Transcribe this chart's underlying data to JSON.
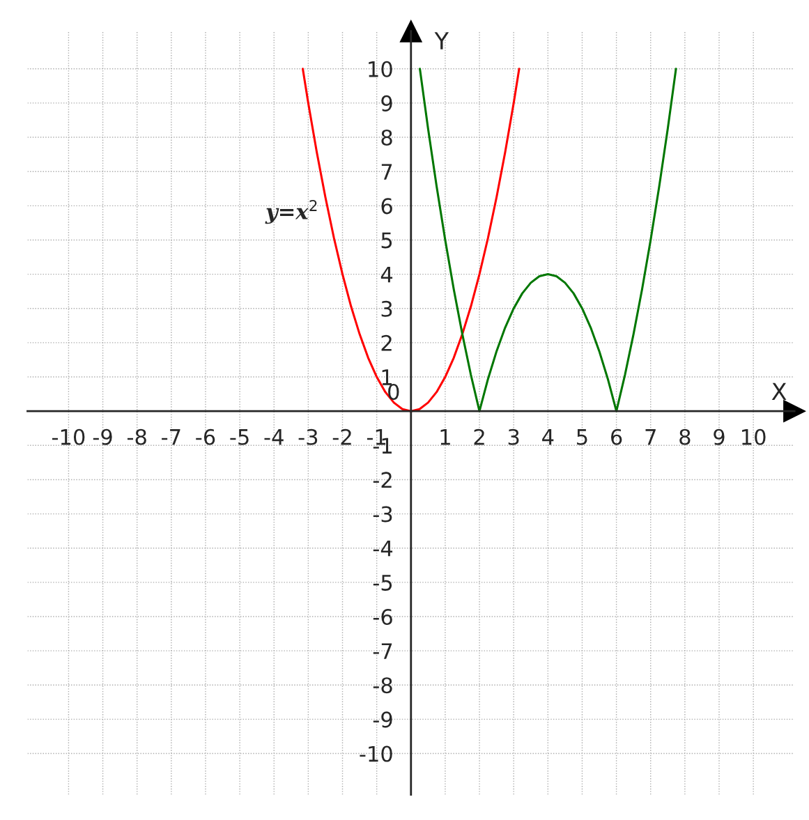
{
  "chart_data": {
    "type": "line",
    "xlabel": "X",
    "ylabel": "Y",
    "xlim": [
      -11.2,
      11.2
    ],
    "ylim": [
      -11.2,
      11.1
    ],
    "xticks": [
      -10,
      -9,
      -8,
      -7,
      -6,
      -5,
      -4,
      -3,
      -2,
      -1,
      {
        "value": 0,
        "label": null
      },
      1,
      2,
      3,
      4,
      5,
      6,
      7,
      8,
      9,
      10
    ],
    "yticks": [
      -10,
      -9,
      -8,
      -7,
      -6,
      -5,
      -4,
      -3,
      -2,
      -1,
      {
        "value": 0,
        "label": null
      },
      1,
      2,
      3,
      4,
      5,
      6,
      7,
      8,
      9,
      10
    ],
    "grid": true,
    "marker": "none",
    "line_style": "solid",
    "series": [
      {
        "color": "#ff0000",
        "x": [
          -3.16,
          -3,
          -2.75,
          -2.5,
          -2.25,
          -2,
          -1.75,
          -1.5,
          -1.25,
          -1,
          -0.75,
          -0.5,
          -0.25,
          0,
          0.25,
          0.5,
          0.75,
          1,
          1.25,
          1.5,
          1.75,
          2,
          2.25,
          2.5,
          2.75,
          3,
          3.16
        ],
        "values": [
          10,
          9,
          7.56,
          6.25,
          5.06,
          4,
          3.06,
          2.25,
          1.56,
          1,
          0.56,
          0.25,
          0.06,
          0,
          0.06,
          0.25,
          0.56,
          1,
          1.56,
          2.25,
          3.06,
          4,
          5.06,
          6.25,
          7.56,
          9,
          10
        ]
      },
      {
        "color": "#007700",
        "x": [
          0.26,
          0.5,
          0.75,
          1,
          1.25,
          1.5,
          1.75,
          2,
          2.25,
          2.5,
          2.75,
          3,
          3.25,
          3.5,
          3.75,
          4,
          4.25,
          4.5,
          4.75,
          5,
          5.25,
          5.5,
          5.75,
          6,
          6.25,
          6.5,
          6.75,
          7,
          7.25,
          7.5,
          7.74
        ],
        "values": [
          10,
          8.25,
          6.56,
          5,
          3.56,
          2.25,
          1.06,
          0,
          0.94,
          1.75,
          2.44,
          3,
          3.44,
          3.75,
          3.94,
          4,
          3.94,
          3.75,
          3.44,
          3,
          2.44,
          1.75,
          0.94,
          0,
          1.06,
          2.25,
          3.56,
          5,
          6.56,
          8.25,
          10
        ]
      }
    ],
    "annotations": [
      "y=x$^{2}$",
      {
        "text": "0",
        "x": 0,
        "y": 0
      }
    ]
  }
}
